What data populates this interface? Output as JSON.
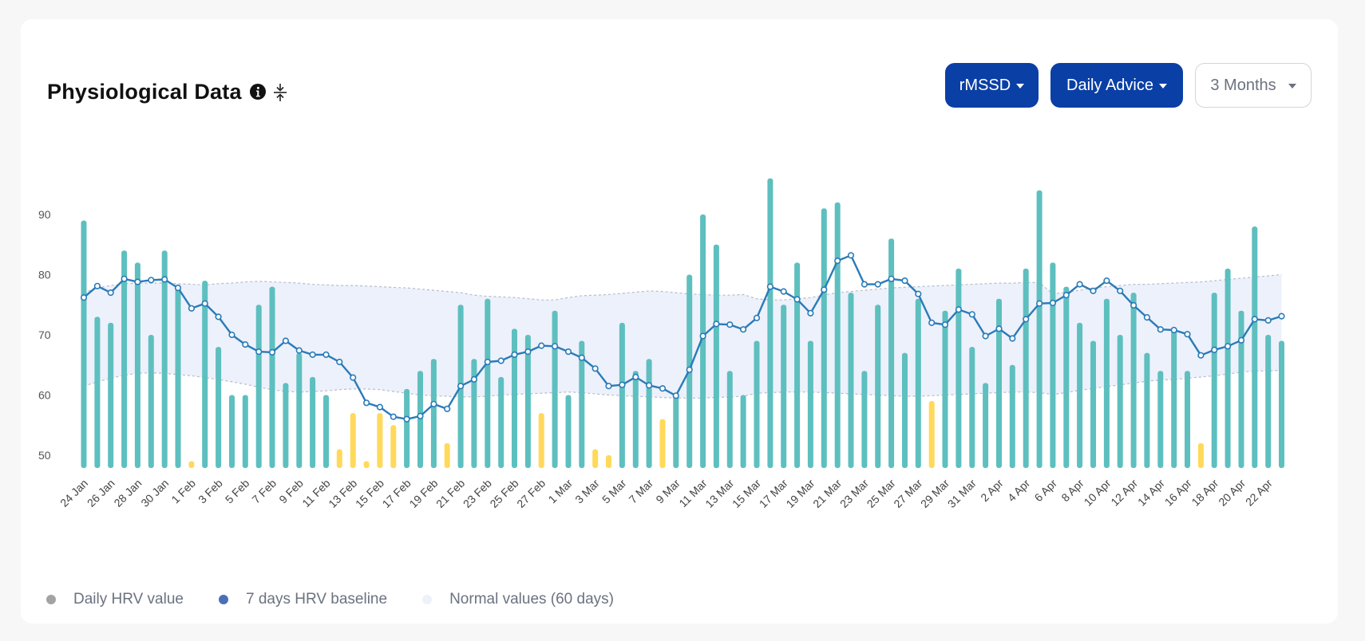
{
  "header": {
    "title": "Physiological Data",
    "info_icon": "info-icon",
    "collapse_icon": "collapse-vertical-icon",
    "metric_label": "rMSSD",
    "advice_label": "Daily Advice",
    "range_label": "3 Months"
  },
  "colors": {
    "accent": "#0a3fa5",
    "bar_normal": "#5ebfbf",
    "bar_low": "#ffd95a",
    "baseline": "#2a7bb8",
    "band": "#edf1fb"
  },
  "legend": [
    {
      "label": "Daily HRV value",
      "color": "#a3a3a3"
    },
    {
      "label": "7 days HRV baseline",
      "color": "#4a6fb8"
    },
    {
      "label": "Normal values (60 days)",
      "color": "#eef1fa"
    }
  ],
  "chart_data": {
    "type": "bar",
    "title": "",
    "xlabel": "",
    "ylabel": "",
    "ylim": [
      44,
      100
    ],
    "yticks": [
      50,
      60,
      70,
      80,
      90
    ],
    "tick_labels": [
      "24 Jan",
      "26 Jan",
      "28 Jan",
      "30 Jan",
      "1 Feb",
      "3 Feb",
      "5 Feb",
      "7 Feb",
      "9 Feb",
      "11 Feb",
      "13 Feb",
      "15 Feb",
      "17 Feb",
      "19 Feb",
      "21 Feb",
      "23 Feb",
      "25 Feb",
      "27 Feb",
      "1 Mar",
      "3 Mar",
      "5 Mar",
      "7 Mar",
      "9 Mar",
      "11 Mar",
      "13 Mar",
      "15 Mar",
      "17 Mar",
      "19 Mar",
      "21 Mar",
      "23 Mar",
      "25 Mar",
      "27 Mar",
      "29 Mar",
      "31 Mar",
      "2 Apr",
      "4 Apr",
      "6 Apr",
      "8 Apr",
      "10 Apr",
      "12 Apr",
      "14 Apr",
      "16 Apr",
      "18 Apr",
      "20 Apr",
      "22 Apr"
    ],
    "series": [
      {
        "name": "Daily HRV value",
        "values": [
          89,
          73,
          72,
          84,
          82,
          70,
          84,
          78,
          49,
          79,
          68,
          60,
          60,
          75,
          78,
          62,
          67,
          63,
          60,
          51,
          57,
          49,
          57,
          55,
          61,
          64,
          66,
          52,
          75,
          66,
          76,
          63,
          71,
          70,
          57,
          74,
          60,
          69,
          51,
          50,
          72,
          64,
          66,
          56,
          60,
          80,
          90,
          85,
          64,
          60,
          69,
          96,
          75,
          82,
          69,
          91,
          92,
          77,
          64,
          75,
          86,
          67,
          76,
          59,
          74,
          81,
          68,
          62,
          76,
          65,
          81,
          94,
          82,
          78,
          72,
          69,
          76,
          70,
          77,
          67,
          64,
          71,
          64,
          52,
          77,
          81,
          74,
          88,
          70,
          69
        ]
      },
      {
        "name": "7 days HRV baseline",
        "values": [
          76.2,
          78.1,
          77.0,
          79.3,
          78.8,
          79.1,
          79.2,
          77.8,
          74.4,
          75.2,
          73.0,
          70.0,
          68.4,
          67.2,
          67.1,
          69.0,
          67.4,
          66.7,
          66.7,
          65.5,
          62.9,
          58.7,
          58.0,
          56.4,
          56.0,
          56.5,
          58.5,
          57.7,
          61.5,
          62.6,
          65.5,
          65.7,
          66.7,
          67.2,
          68.2,
          68.1,
          67.2,
          66.2,
          64.4,
          61.5,
          61.7,
          63.0,
          61.6,
          61.1,
          59.9,
          64.2,
          69.8,
          71.8,
          71.7,
          70.9,
          72.8,
          78.0,
          77.2,
          75.9,
          73.6,
          77.5,
          82.3,
          83.2,
          78.4,
          78.4,
          79.3,
          79.0,
          76.8,
          72.0,
          71.7,
          74.2,
          73.4,
          69.8,
          71.0,
          69.4,
          72.6,
          75.2,
          75.3,
          76.6,
          78.4,
          77.3,
          79.0,
          77.3,
          74.9,
          72.9,
          70.9,
          70.8,
          70.1,
          66.6,
          67.5,
          68.1,
          69.1,
          72.6,
          72.4,
          73.1
        ]
      },
      {
        "name": "Normal values (60 days)",
        "upper": [
          77.0,
          77.8,
          78.2,
          78.5,
          78.6,
          78.6,
          78.6,
          78.5,
          78.4,
          78.3,
          78.5,
          78.6,
          78.8,
          78.9,
          78.8,
          78.7,
          78.6,
          78.4,
          78.3,
          78.2,
          78.2,
          78.1,
          78.0,
          77.9,
          77.8,
          77.6,
          77.4,
          77.2,
          77.0,
          76.6,
          76.4,
          76.3,
          76.2,
          76.0,
          75.8,
          75.8,
          76.2,
          76.5,
          76.6,
          76.7,
          76.9,
          77.1,
          77.3,
          77.2,
          77.0,
          76.8,
          76.7,
          76.6,
          76.6,
          76.7
        ],
        "lower": [
          61.5,
          62.2,
          62.8,
          63.3,
          63.6,
          63.7,
          63.6,
          63.4,
          63.2,
          62.9,
          62.6,
          62.2,
          61.8,
          61.3,
          60.9,
          60.6,
          60.5,
          60.6,
          60.7,
          60.9,
          61.0,
          61.0,
          60.9,
          60.6,
          60.3,
          60.0,
          59.9,
          59.8,
          59.7,
          59.7,
          59.8,
          60.0,
          60.1,
          60.2,
          60.3,
          60.4,
          60.5,
          60.4,
          60.2,
          60.0,
          59.9,
          59.8,
          59.7,
          59.6,
          59.5,
          59.5,
          59.5,
          59.6,
          59.7,
          59.8
        ],
        "upper_tail": [
          76.8,
          77.1,
          77.4,
          77.8,
          78.0,
          78.2,
          78.4,
          78.4,
          78.5,
          78.6,
          78.7,
          78.8,
          79.0,
          79.2,
          79.4,
          79.6,
          79.8,
          80.0
        ],
        "lower_tail": [
          60.1,
          60.4,
          60.8,
          61.1,
          61.4,
          61.7,
          62.0,
          62.3,
          62.5,
          62.6,
          62.8,
          63.0,
          63.2,
          63.5,
          63.8,
          64.0,
          64.0,
          64.1
        ],
        "upper_mid": [
          76.0,
          75.8,
          75.8,
          76.0,
          76.2,
          76.6,
          77.0,
          77.2,
          77.4,
          77.6,
          77.8,
          77.9,
          78.0,
          78.1,
          78.2,
          78.3,
          78.4,
          78.5,
          78.6,
          78.6,
          78.7,
          78.7
        ],
        "lower_mid": [
          60.3,
          60.4,
          60.5,
          60.5,
          60.5,
          60.4,
          60.3,
          60.2,
          60.1,
          60.0,
          59.9,
          59.8,
          59.8,
          59.9,
          60.0,
          60.1,
          60.2,
          60.3,
          60.4,
          60.5,
          60.5,
          60.4
        ]
      }
    ],
    "low_threshold": 60
  }
}
